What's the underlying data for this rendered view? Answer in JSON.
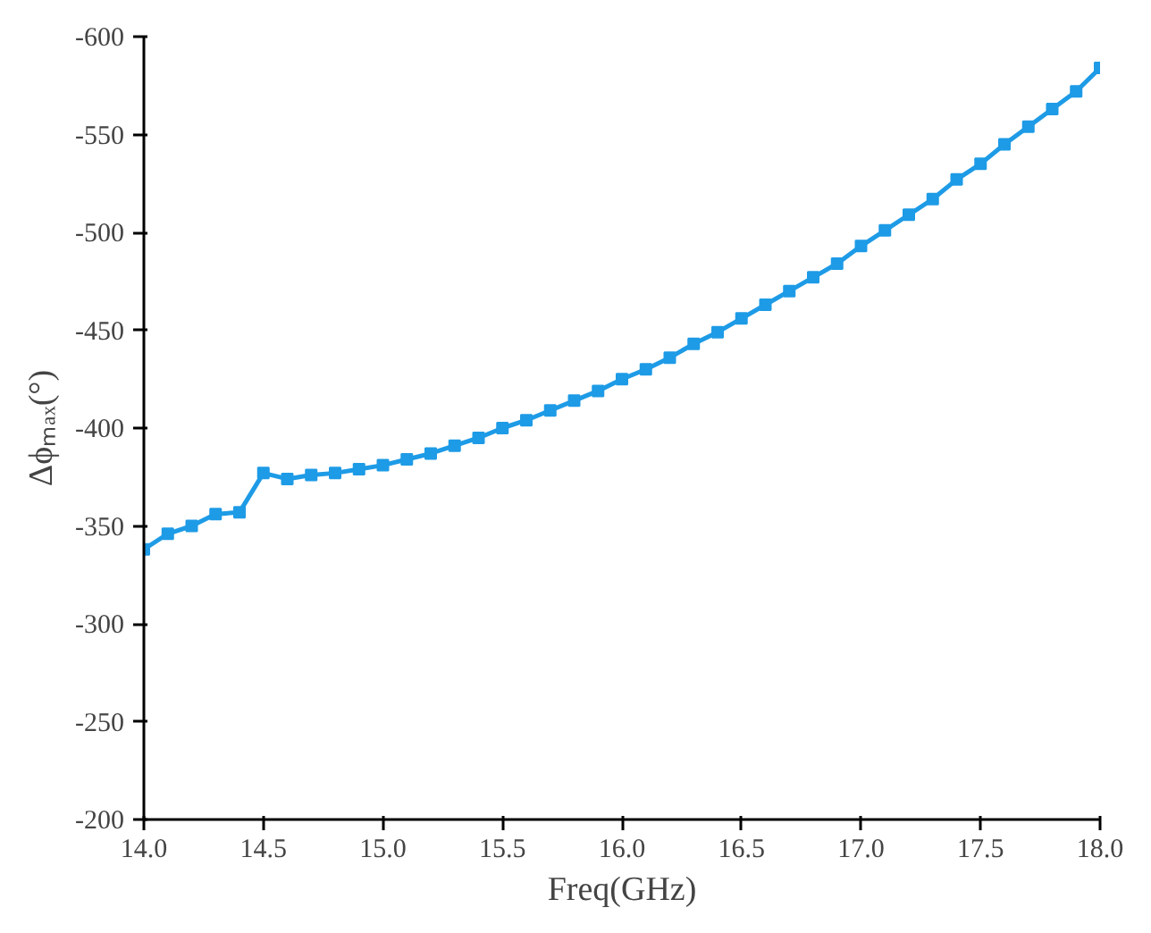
{
  "chart_data": {
    "type": "line",
    "xlabel": "Freq(GHz)",
    "ylabel": "Δϕₘₐₓ(°)",
    "x": [
      14.0,
      14.1,
      14.2,
      14.3,
      14.4,
      14.5,
      14.6,
      14.7,
      14.8,
      14.9,
      15.0,
      15.1,
      15.2,
      15.3,
      15.4,
      15.5,
      15.6,
      15.7,
      15.8,
      15.9,
      16.0,
      16.1,
      16.2,
      16.3,
      16.4,
      16.5,
      16.6,
      16.7,
      16.8,
      16.9,
      17.0,
      17.1,
      17.2,
      17.3,
      17.4,
      17.5,
      17.6,
      17.7,
      17.8,
      17.9,
      18.0
    ],
    "series": [
      {
        "color": "#1e9be6",
        "values": [
          -338,
          -346,
          -350,
          -356,
          -357,
          -377,
          -374,
          -376,
          -377,
          -379,
          -381,
          -384,
          -387,
          -391,
          -395,
          -400,
          -404,
          -409,
          -414,
          -419,
          -425,
          -430,
          -436,
          -443,
          -449,
          -456,
          -463,
          -470,
          -477,
          -484,
          -493,
          -501,
          -509,
          -517,
          -527,
          -535,
          -545,
          -554,
          -563,
          -572,
          -584
        ]
      }
    ],
    "xlim": [
      14.0,
      18.0
    ],
    "xticks": [
      {
        "value": 14.0,
        "label": "14.0"
      },
      {
        "value": 14.5,
        "label": "14.5"
      },
      {
        "value": 15.0,
        "label": "15.0"
      },
      {
        "value": 15.5,
        "label": "15.5"
      },
      {
        "value": 16.0,
        "label": "16.0"
      },
      {
        "value": 16.5,
        "label": "16.5"
      },
      {
        "value": 17.0,
        "label": "17.0"
      },
      {
        "value": 17.5,
        "label": "17.5"
      },
      {
        "value": 18.0,
        "label": "18.0"
      }
    ],
    "ylim": [
      -200,
      -600
    ],
    "yticks": [
      -200,
      -250,
      -300,
      -350,
      -400,
      -450,
      -500,
      -550,
      -600
    ],
    "grid": false,
    "marker": "square",
    "line_style": "solid"
  }
}
